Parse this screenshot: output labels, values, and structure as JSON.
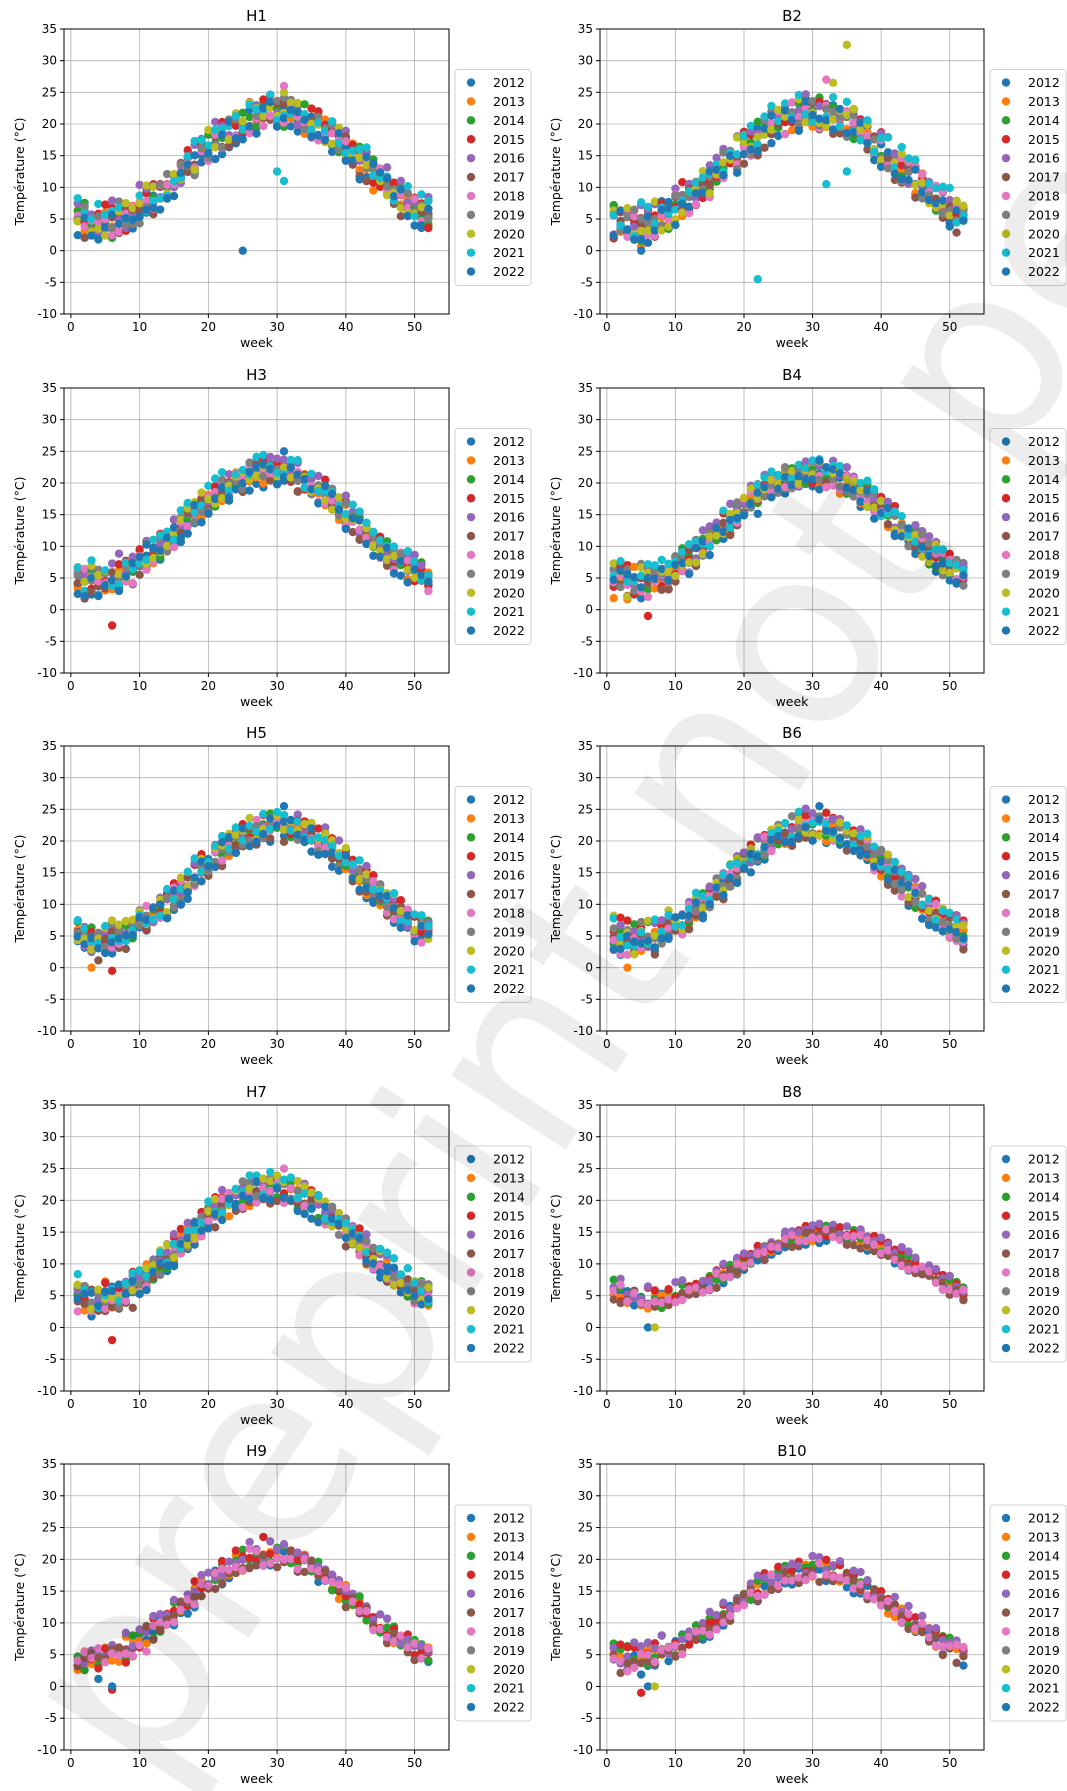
{
  "watermark": "preprint not peer reviewed",
  "colors": {
    "2012": "#1f77b4",
    "2013": "#ff7f0e",
    "2014": "#2ca02c",
    "2015": "#d62728",
    "2016": "#9467bd",
    "2017": "#8c564b",
    "2018": "#e377c2",
    "2019": "#7f7f7f",
    "2020": "#bcbd22",
    "2021": "#17becf",
    "2022": "#1f77b4"
  },
  "chart_data": [
    {
      "type": "scatter",
      "title": "H1",
      "xlabel": "week",
      "ylabel": "Température (°C)",
      "xlim": [
        -1,
        55
      ],
      "ylim": [
        -10,
        35
      ],
      "xticks": [
        0,
        10,
        20,
        30,
        40,
        50
      ],
      "yticks": [
        -10,
        -5,
        0,
        5,
        10,
        15,
        20,
        25,
        30,
        35
      ],
      "grid": true,
      "legend": "right",
      "series_names": [
        "2012",
        "2013",
        "2014",
        "2015",
        "2016",
        "2017",
        "2018",
        "2019",
        "2020",
        "2021",
        "2022"
      ],
      "peak": 22,
      "amp_winter": 3.5,
      "peak_week": 30,
      "spread": 2.4,
      "outliers": [
        {
          "series": "2020",
          "x": 31,
          "y": 25
        },
        {
          "series": "2018",
          "x": 31,
          "y": 26
        },
        {
          "series": "2021",
          "x": 30,
          "y": 12.5
        },
        {
          "series": "2021",
          "x": 31,
          "y": 11
        },
        {
          "series": "2022",
          "x": 25,
          "y": 0
        }
      ]
    },
    {
      "type": "scatter",
      "title": "B2",
      "xlabel": "week",
      "ylabel": "Température (°C)",
      "xlim": [
        -1,
        55
      ],
      "ylim": [
        -10,
        35
      ],
      "xticks": [
        0,
        10,
        20,
        30,
        40,
        50
      ],
      "yticks": [
        -10,
        -5,
        0,
        5,
        10,
        15,
        20,
        25,
        30,
        35
      ],
      "grid": true,
      "legend": "right",
      "series_names": [
        "2012",
        "2013",
        "2014",
        "2015",
        "2016",
        "2017",
        "2018",
        "2019",
        "2020",
        "2021",
        "2022"
      ],
      "peak": 22,
      "amp_winter": 3.5,
      "peak_week": 30,
      "spread": 2.5,
      "outliers": [
        {
          "series": "2020",
          "x": 35,
          "y": 32.5
        },
        {
          "series": "2020",
          "x": 33,
          "y": 26.5
        },
        {
          "series": "2018",
          "x": 32,
          "y": 27
        },
        {
          "series": "2021",
          "x": 22,
          "y": -4.5
        },
        {
          "series": "2021",
          "x": 32,
          "y": 10.5
        },
        {
          "series": "2021",
          "x": 35,
          "y": 12.5
        },
        {
          "series": "2022",
          "x": 5,
          "y": 0
        }
      ]
    },
    {
      "type": "scatter",
      "title": "H3",
      "xlabel": "week",
      "ylabel": "Température (°C)",
      "xlim": [
        -1,
        55
      ],
      "ylim": [
        -10,
        35
      ],
      "xticks": [
        0,
        10,
        20,
        30,
        40,
        50
      ],
      "yticks": [
        -10,
        -5,
        0,
        5,
        10,
        15,
        20,
        25,
        30,
        35
      ],
      "grid": true,
      "legend": "right",
      "series_names": [
        "2012",
        "2013",
        "2014",
        "2015",
        "2016",
        "2017",
        "2018",
        "2019",
        "2020",
        "2021",
        "2022"
      ],
      "peak": 22,
      "amp_winter": 3.2,
      "peak_week": 29,
      "spread": 2.0,
      "outliers": [
        {
          "series": "2015",
          "x": 6,
          "y": -2.5
        },
        {
          "series": "2012",
          "x": 31,
          "y": 25
        }
      ]
    },
    {
      "type": "scatter",
      "title": "B4",
      "xlabel": "week",
      "ylabel": "Température (°C)",
      "xlim": [
        -1,
        55
      ],
      "ylim": [
        -10,
        35
      ],
      "xticks": [
        0,
        10,
        20,
        30,
        40,
        50
      ],
      "yticks": [
        -10,
        -5,
        0,
        5,
        10,
        15,
        20,
        25,
        30,
        35
      ],
      "grid": true,
      "legend": "right",
      "series_names": [
        "2012",
        "2013",
        "2014",
        "2015",
        "2016",
        "2017",
        "2018",
        "2019",
        "2020",
        "2021",
        "2022"
      ],
      "peak": 21.5,
      "amp_winter": 3.5,
      "peak_week": 30,
      "spread": 2.0,
      "outliers": [
        {
          "series": "2015",
          "x": 6,
          "y": -1
        },
        {
          "series": "2012",
          "x": 31,
          "y": 23.5
        }
      ]
    },
    {
      "type": "scatter",
      "title": "H5",
      "xlabel": "week",
      "ylabel": "Température (°C)",
      "xlim": [
        -1,
        55
      ],
      "ylim": [
        -10,
        35
      ],
      "xticks": [
        0,
        10,
        20,
        30,
        40,
        50
      ],
      "yticks": [
        -10,
        -5,
        0,
        5,
        10,
        15,
        20,
        25,
        30,
        35
      ],
      "grid": true,
      "legend": "right",
      "series_names": [
        "2012",
        "2013",
        "2014",
        "2015",
        "2016",
        "2017",
        "2018",
        "2019",
        "2020",
        "2021",
        "2022"
      ],
      "peak": 22.5,
      "amp_winter": 3.5,
      "peak_week": 30,
      "spread": 2.0,
      "outliers": [
        {
          "series": "2015",
          "x": 6,
          "y": -0.5
        },
        {
          "series": "2013",
          "x": 3,
          "y": 0
        },
        {
          "series": "2012",
          "x": 31,
          "y": 25.5
        }
      ]
    },
    {
      "type": "scatter",
      "title": "B6",
      "xlabel": "week",
      "ylabel": "Température (°C)",
      "xlim": [
        -1,
        55
      ],
      "ylim": [
        -10,
        35
      ],
      "xticks": [
        0,
        10,
        20,
        30,
        40,
        50
      ],
      "yticks": [
        -10,
        -5,
        0,
        5,
        10,
        15,
        20,
        25,
        30,
        35
      ],
      "grid": true,
      "legend": "right",
      "series_names": [
        "2012",
        "2013",
        "2014",
        "2015",
        "2016",
        "2017",
        "2018",
        "2019",
        "2020",
        "2021",
        "2022"
      ],
      "peak": 22.5,
      "amp_winter": 3.5,
      "peak_week": 30,
      "spread": 2.0,
      "outliers": [
        {
          "series": "2013",
          "x": 3,
          "y": 0
        },
        {
          "series": "2012",
          "x": 31,
          "y": 25.5
        }
      ]
    },
    {
      "type": "scatter",
      "title": "H7",
      "xlabel": "week",
      "ylabel": "Température (°C)",
      "xlim": [
        -1,
        55
      ],
      "ylim": [
        -10,
        35
      ],
      "xticks": [
        0,
        10,
        20,
        30,
        40,
        50
      ],
      "yticks": [
        -10,
        -5,
        0,
        5,
        10,
        15,
        20,
        25,
        30,
        35
      ],
      "grid": true,
      "legend": "right",
      "series_names": [
        "2012",
        "2013",
        "2014",
        "2015",
        "2016",
        "2017",
        "2018",
        "2019",
        "2020",
        "2021",
        "2022"
      ],
      "peak": 22,
      "amp_winter": 3.5,
      "peak_week": 29,
      "spread": 2.0,
      "outliers": [
        {
          "series": "2015",
          "x": 6,
          "y": -2
        },
        {
          "series": "2018",
          "x": 31,
          "y": 25
        }
      ]
    },
    {
      "type": "scatter",
      "title": "B8",
      "xlabel": "week",
      "ylabel": "Température (°C)",
      "xlim": [
        -1,
        55
      ],
      "ylim": [
        -10,
        35
      ],
      "xticks": [
        0,
        10,
        20,
        30,
        40,
        50
      ],
      "yticks": [
        -10,
        -5,
        0,
        5,
        10,
        15,
        20,
        25,
        30,
        35
      ],
      "grid": true,
      "legend": "right",
      "series_names": [
        "2012",
        "2013",
        "2014",
        "2015",
        "2016",
        "2017",
        "2018",
        "2019",
        "2020",
        "2021",
        "2022"
      ],
      "active_series": [
        "2012",
        "2013",
        "2014",
        "2015",
        "2016",
        "2017",
        "2018"
      ],
      "peak": 15,
      "amp_winter": 4.5,
      "peak_week": 32,
      "spread": 1.0,
      "outliers": [
        {
          "series": "2022",
          "x": 6,
          "y": 0
        },
        {
          "series": "2020",
          "x": 7,
          "y": 0
        }
      ]
    },
    {
      "type": "scatter",
      "title": "H9",
      "xlabel": "week",
      "ylabel": "Température (°C)",
      "xlim": [
        -1,
        55
      ],
      "ylim": [
        -10,
        35
      ],
      "xticks": [
        0,
        10,
        20,
        30,
        40,
        50
      ],
      "yticks": [
        -10,
        -5,
        0,
        5,
        10,
        15,
        20,
        25,
        30,
        35
      ],
      "grid": true,
      "legend": "right",
      "series_names": [
        "2012",
        "2013",
        "2014",
        "2015",
        "2016",
        "2017",
        "2018",
        "2019",
        "2020",
        "2021",
        "2022"
      ],
      "active_series": [
        "2012",
        "2013",
        "2014",
        "2015",
        "2016",
        "2017",
        "2018"
      ],
      "peak": 21,
      "amp_winter": 4,
      "peak_week": 29,
      "spread": 1.6,
      "outliers": [
        {
          "series": "2015",
          "x": 6,
          "y": -0.5
        },
        {
          "series": "2022",
          "x": 6,
          "y": 0
        },
        {
          "series": "2015",
          "x": 28,
          "y": 23.5
        }
      ]
    },
    {
      "type": "scatter",
      "title": "B10",
      "xlabel": "week",
      "ylabel": "Température (°C)",
      "xlim": [
        -1,
        55
      ],
      "ylim": [
        -10,
        35
      ],
      "xticks": [
        0,
        10,
        20,
        30,
        40,
        50
      ],
      "yticks": [
        -10,
        -5,
        0,
        5,
        10,
        15,
        20,
        25,
        30,
        35
      ],
      "grid": true,
      "legend": "right",
      "series_names": [
        "2012",
        "2013",
        "2014",
        "2015",
        "2016",
        "2017",
        "2018",
        "2019",
        "2020",
        "2021",
        "2022"
      ],
      "active_series": [
        "2012",
        "2013",
        "2014",
        "2015",
        "2016",
        "2017",
        "2018"
      ],
      "peak": 18.5,
      "amp_winter": 4,
      "peak_week": 30,
      "spread": 1.4,
      "outliers": [
        {
          "series": "2015",
          "x": 5,
          "y": -1
        },
        {
          "series": "2022",
          "x": 6,
          "y": 0
        },
        {
          "series": "2020",
          "x": 7,
          "y": 0
        }
      ]
    }
  ]
}
